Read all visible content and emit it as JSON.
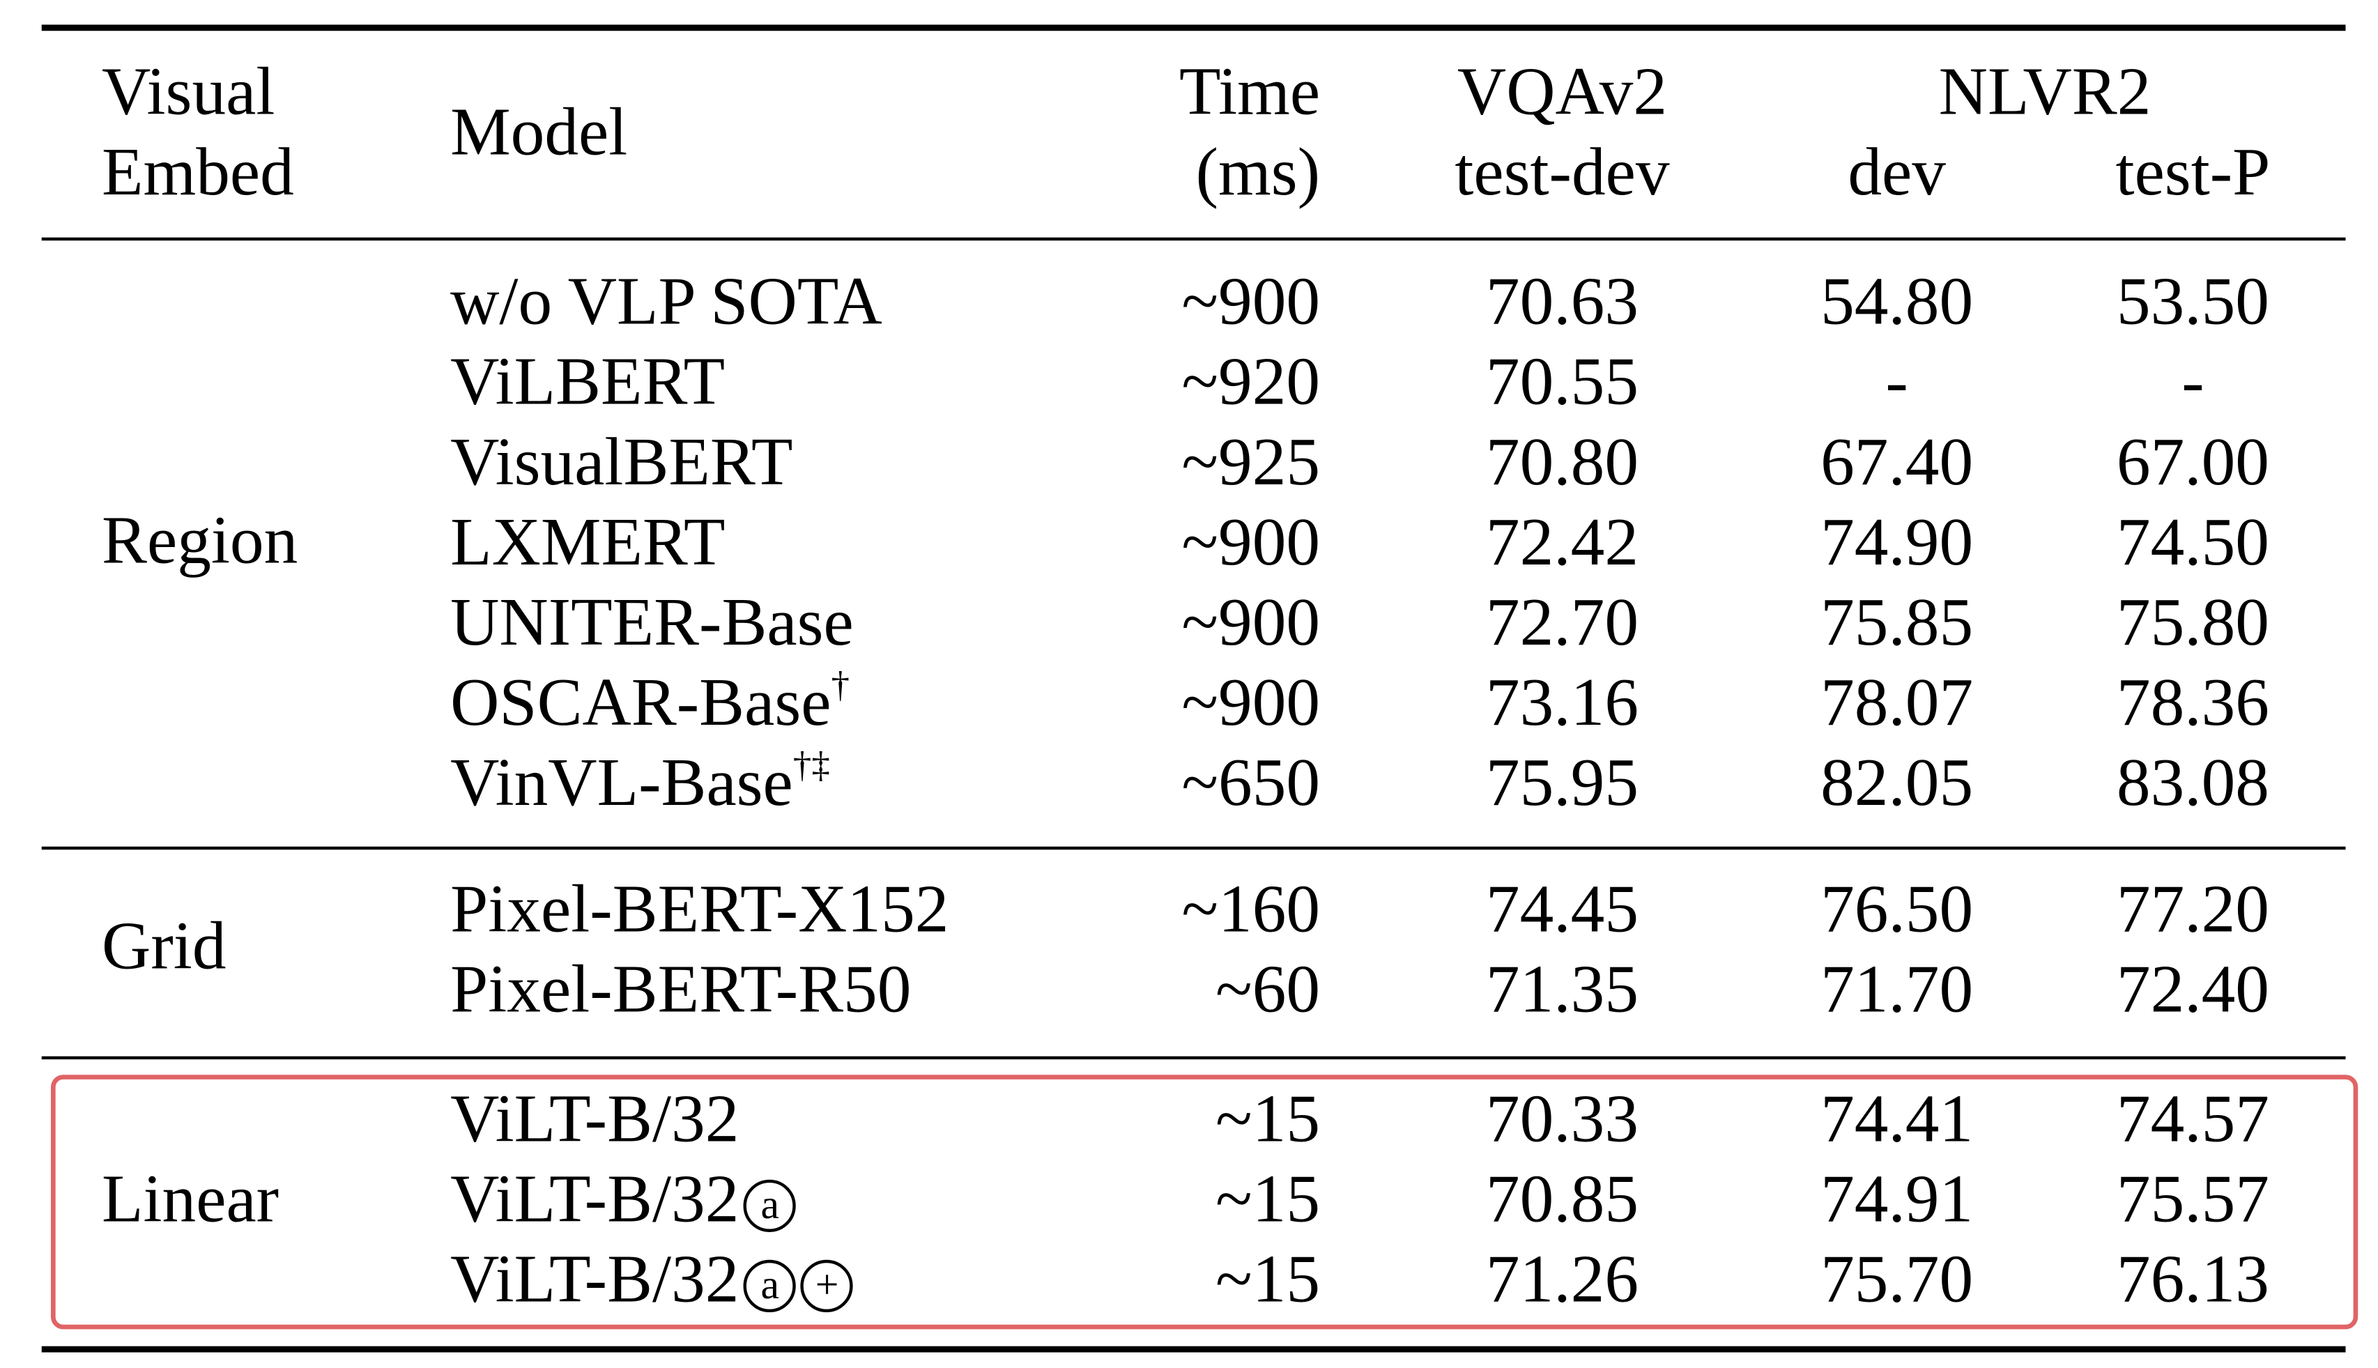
{
  "table": {
    "header": {
      "visual_embed": [
        "Visual",
        "Embed"
      ],
      "model": "Model",
      "time": [
        "Time",
        "(ms)"
      ],
      "vqa": [
        "VQAv2",
        "test-dev"
      ],
      "nlvr2": "NLVR2",
      "nlvr2_dev": "dev",
      "nlvr2_testp": "test-P"
    },
    "groups": [
      {
        "name": "Region",
        "rows": [
          {
            "model": "w/o VLP SOTA",
            "sup": "",
            "marks": [],
            "time": "~900",
            "vqa": "70.63",
            "dev": "54.80",
            "testp": "53.50"
          },
          {
            "model": "ViLBERT",
            "sup": "",
            "marks": [],
            "time": "~920",
            "vqa": "70.55",
            "dev": "-",
            "testp": "-"
          },
          {
            "model": "VisualBERT",
            "sup": "",
            "marks": [],
            "time": "~925",
            "vqa": "70.80",
            "dev": "67.40",
            "testp": "67.00"
          },
          {
            "model": "LXMERT",
            "sup": "",
            "marks": [],
            "time": "~900",
            "vqa": "72.42",
            "dev": "74.90",
            "testp": "74.50"
          },
          {
            "model": "UNITER-Base",
            "sup": "",
            "marks": [],
            "time": "~900",
            "vqa": "72.70",
            "dev": "75.85",
            "testp": "75.80"
          },
          {
            "model": "OSCAR-Base",
            "sup": "†",
            "marks": [],
            "time": "~900",
            "vqa": "73.16",
            "dev": "78.07",
            "testp": "78.36"
          },
          {
            "model": "VinVL-Base",
            "sup": "†‡",
            "marks": [],
            "time": "~650",
            "vqa": "75.95",
            "dev": "82.05",
            "testp": "83.08"
          }
        ]
      },
      {
        "name": "Grid",
        "rows": [
          {
            "model": "Pixel-BERT-X152",
            "sup": "",
            "marks": [],
            "time": "~160",
            "vqa": "74.45",
            "dev": "76.50",
            "testp": "77.20"
          },
          {
            "model": "Pixel-BERT-R50",
            "sup": "",
            "marks": [],
            "time": "~60",
            "vqa": "71.35",
            "dev": "71.70",
            "testp": "72.40"
          }
        ]
      },
      {
        "name": "Linear",
        "rows": [
          {
            "model": "ViLT-B/32",
            "sup": "",
            "marks": [],
            "time": "~15",
            "vqa": "70.33",
            "dev": "74.41",
            "testp": "74.57"
          },
          {
            "model": "ViLT-B/32",
            "sup": "",
            "marks": [
              "a"
            ],
            "time": "~15",
            "vqa": "70.85",
            "dev": "74.91",
            "testp": "75.57"
          },
          {
            "model": "ViLT-B/32",
            "sup": "",
            "marks": [
              "a",
              "+"
            ],
            "time": "~15",
            "vqa": "71.26",
            "dev": "75.70",
            "testp": "76.13"
          }
        ]
      }
    ]
  },
  "colors": {
    "highlight_border": "#e06466",
    "text": "#000000",
    "background": "#ffffff"
  }
}
